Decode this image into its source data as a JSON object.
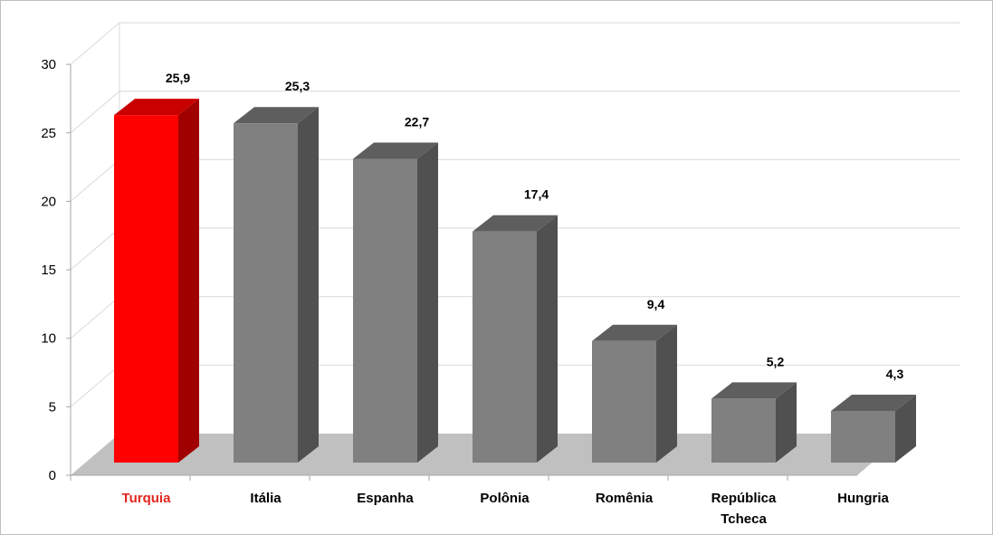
{
  "chart_data": {
    "type": "bar",
    "categories": [
      "Turquia",
      "Itália",
      "Espanha",
      "Polônia",
      "Romênia",
      "República Tcheca",
      "Hungria"
    ],
    "category_lines": [
      [
        "Turquia"
      ],
      [
        "Itália"
      ],
      [
        "Espanha"
      ],
      [
        "Polônia"
      ],
      [
        "Romênia"
      ],
      [
        "República",
        "Tcheca"
      ],
      [
        "Hungria"
      ]
    ],
    "values": [
      25.9,
      25.3,
      22.7,
      17.4,
      9.4,
      5.2,
      4.3
    ],
    "value_labels": [
      "25,9",
      "25,3",
      "22,7",
      "17,4",
      "9,4",
      "5,2",
      "4,3"
    ],
    "yticks": [
      "0",
      "5",
      "10",
      "15",
      "20",
      "25",
      "30"
    ],
    "ylim": [
      0,
      30
    ],
    "grid": true,
    "style": "3d-column",
    "legend": "none",
    "highlight_index": 0,
    "colors": {
      "highlight_front": "#ff0000",
      "highlight_side": "#a00000",
      "highlight_top": "#c80000",
      "highlight_label": "#e0261e",
      "bar_front": "#808080",
      "bar_side": "#505050",
      "bar_top": "#5e5e5e",
      "floor": "#c0c0c0",
      "grid": "#d9d9d9"
    }
  }
}
